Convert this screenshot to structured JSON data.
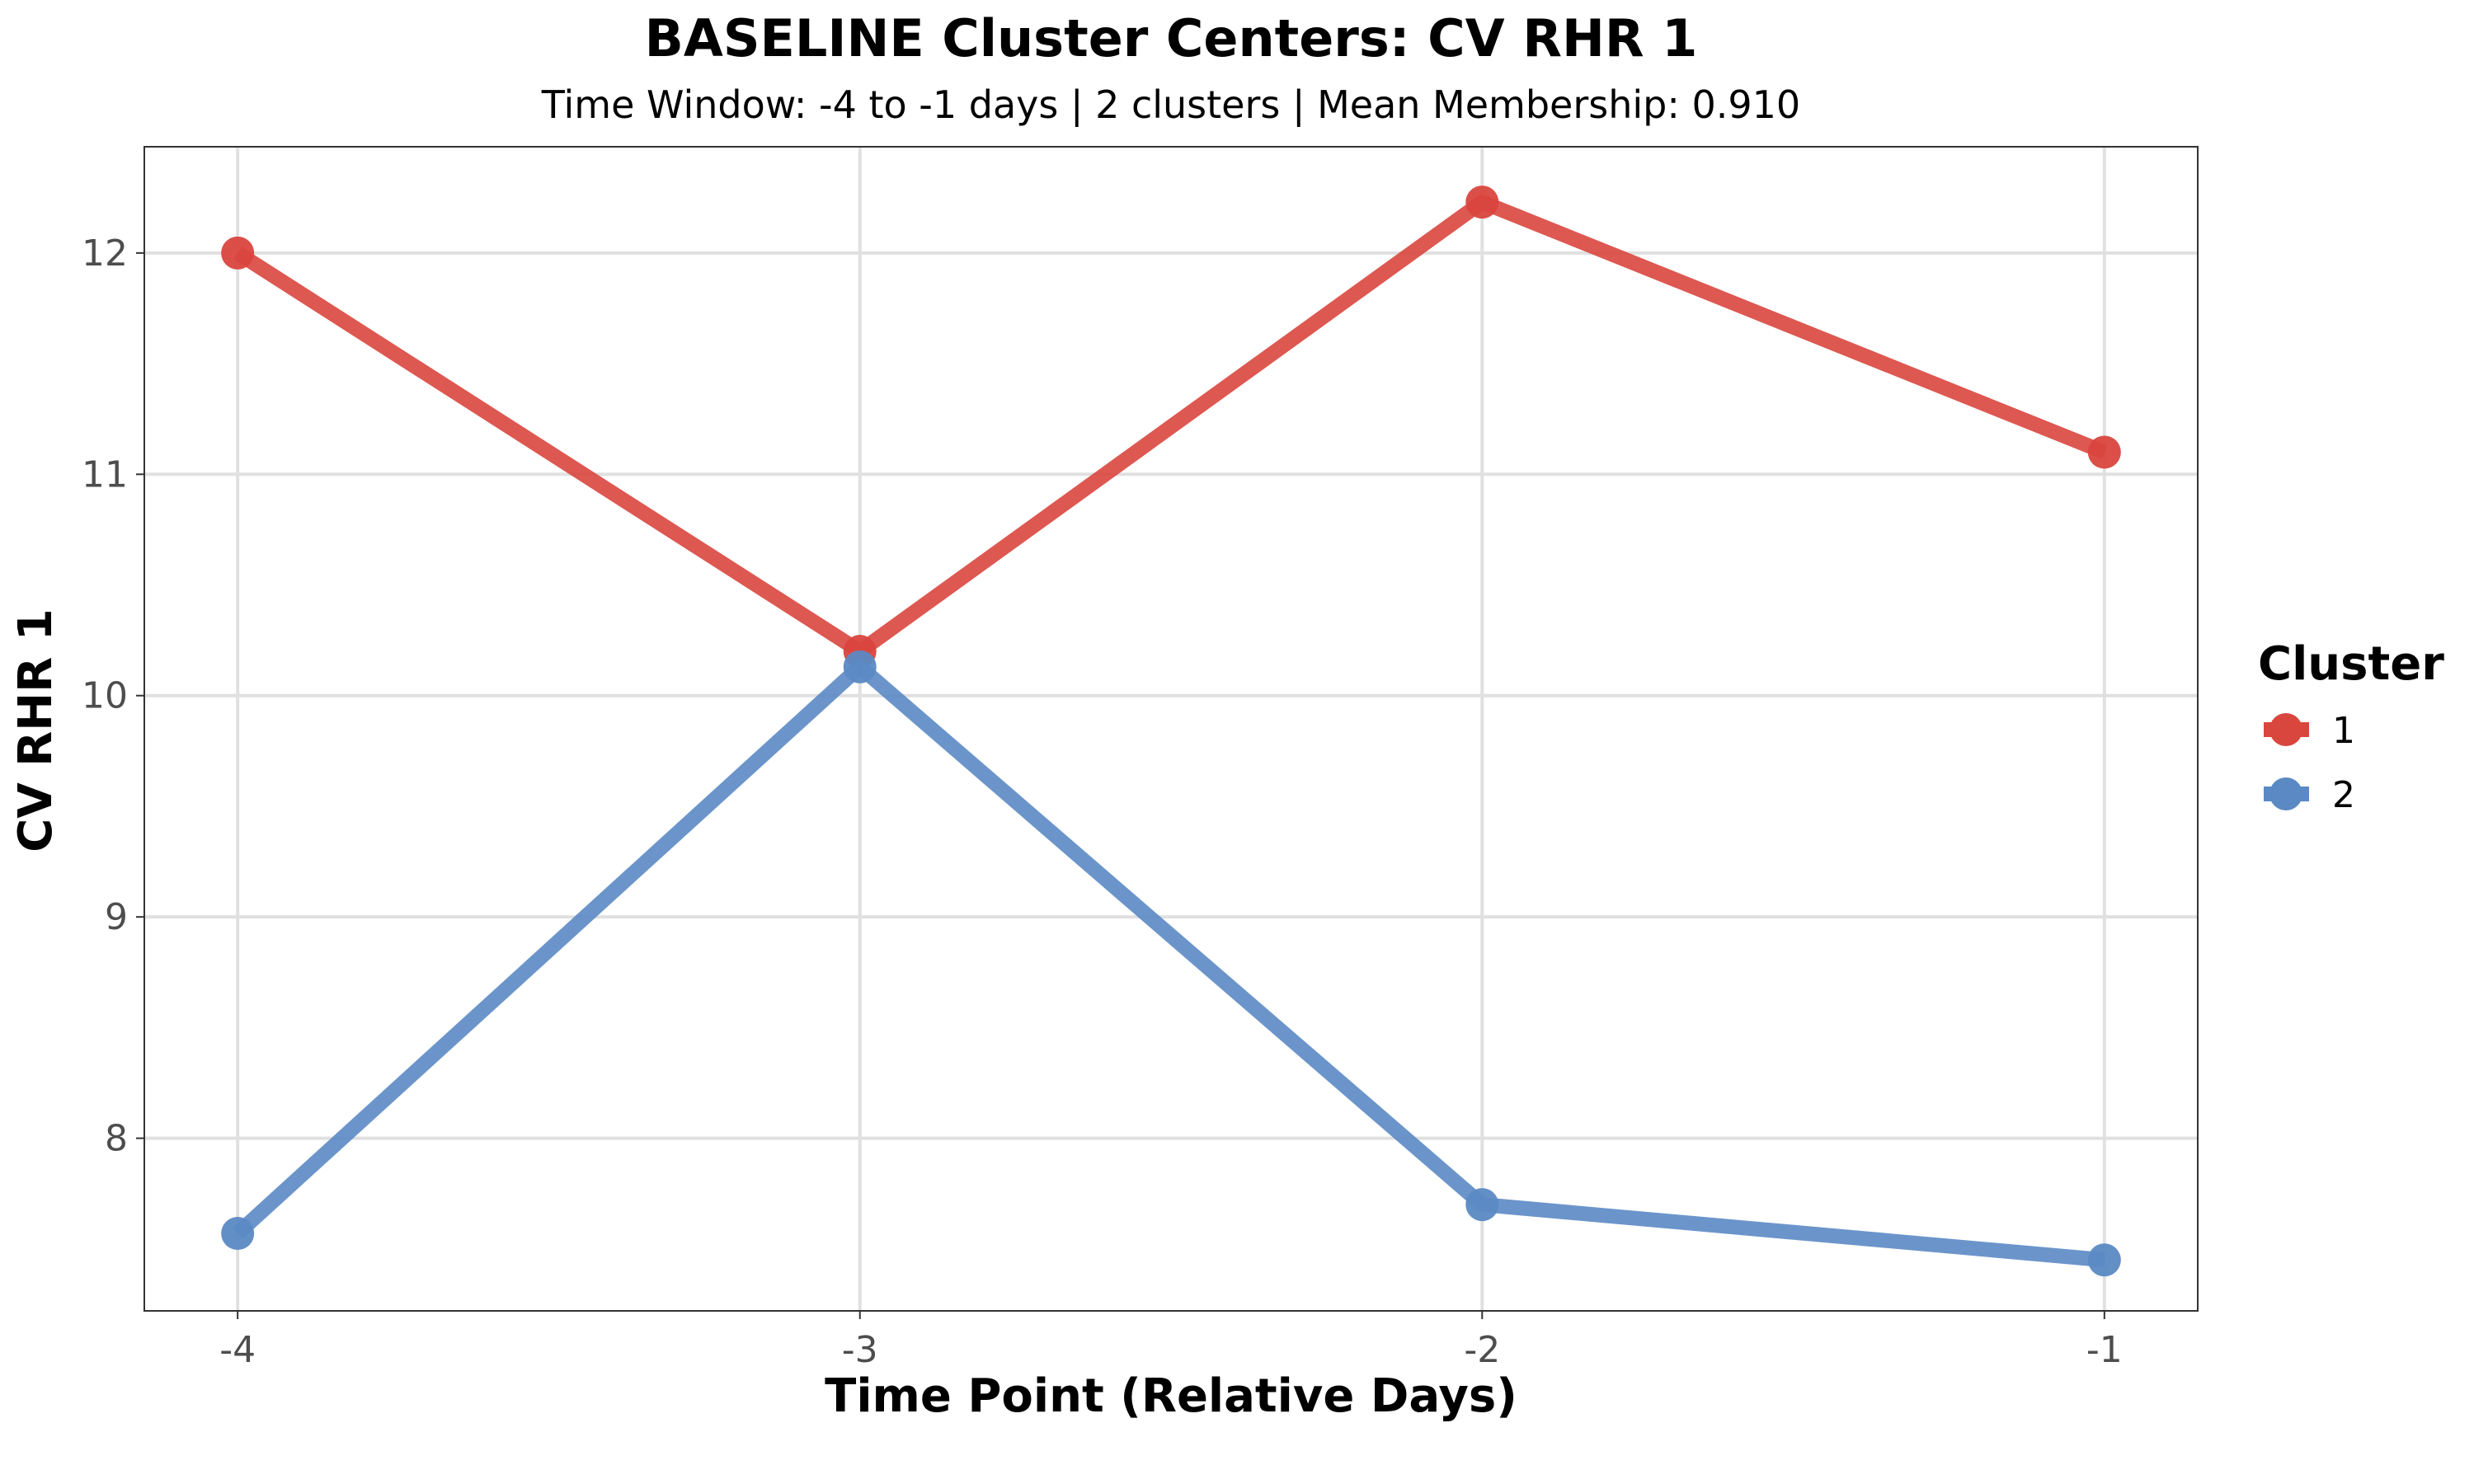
{
  "chart_data": {
    "type": "line",
    "title": "BASELINE Cluster Centers: CV RHR 1",
    "subtitle": "Time Window: -4 to -1 days | 2 clusters | Mean Membership: 0.910",
    "xlabel": "Time Point (Relative Days)",
    "ylabel": "CV RHR 1",
    "x": [
      -4,
      -3,
      -2,
      -1
    ],
    "x_tick_labels": [
      "-4",
      "-3",
      "-2",
      "-1"
    ],
    "xlim": [
      -4.15,
      -0.85
    ],
    "y_ticks": [
      8,
      9,
      10,
      11,
      12
    ],
    "y_tick_labels": [
      "8",
      "9",
      "10",
      "11",
      "12"
    ],
    "ylim": [
      7.22,
      12.48
    ],
    "grid": true,
    "legend": {
      "title": "Cluster",
      "placement": "right"
    },
    "series": [
      {
        "name": "1",
        "color": "#d9463e",
        "values": [
          12.0,
          10.2,
          12.23,
          11.1
        ]
      },
      {
        "name": "2",
        "color": "#5b89c4",
        "values": [
          7.57,
          10.13,
          7.7,
          7.45
        ]
      }
    ]
  }
}
